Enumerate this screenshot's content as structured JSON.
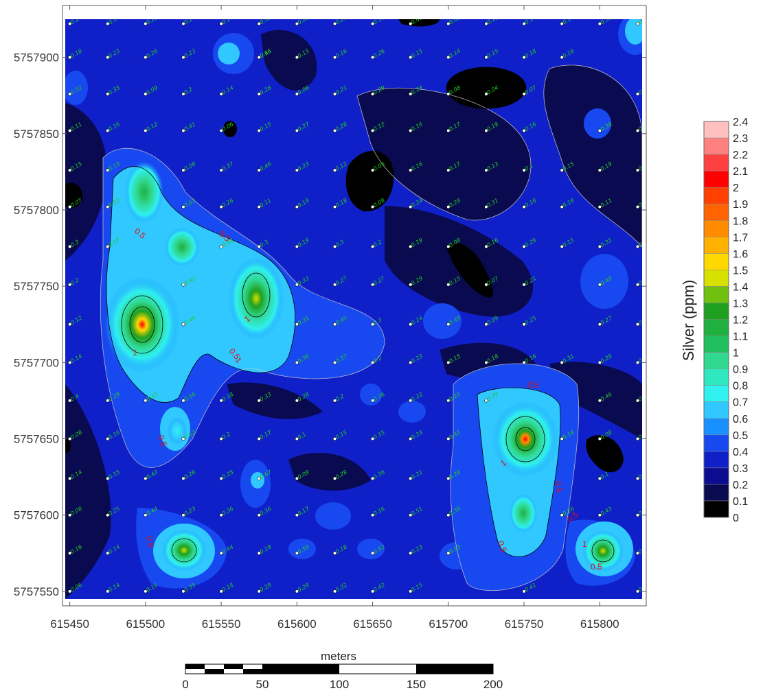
{
  "map": {
    "x_ticks": [
      "615450",
      "615500",
      "615550",
      "615600",
      "615650",
      "615700",
      "615750",
      "615800"
    ],
    "y_ticks": [
      "5757900",
      "5757850",
      "5757800",
      "5757750",
      "5757700",
      "5757650",
      "5757600",
      "5757550"
    ],
    "x_range": [
      615447,
      615828
    ],
    "y_range": [
      5757545,
      5757925
    ],
    "contour_labels": [
      "0.5",
      "1",
      "0.5",
      "1",
      "0.5",
      "1",
      "0.5",
      "0.5",
      "0.5",
      "1",
      "0.5",
      "0.5",
      "0.5",
      "0.5",
      "1"
    ]
  },
  "legend": {
    "title": "Silver (ppm)",
    "levels": [
      "0",
      "0.1",
      "0.2",
      "0.3",
      "0.4",
      "0.5",
      "0.6",
      "0.7",
      "0.8",
      "0.9",
      "1",
      "1.1",
      "1.2",
      "1.3",
      "1.4",
      "1.5",
      "1.6",
      "1.7",
      "1.8",
      "1.9",
      "2",
      "2.1",
      "2.2",
      "2.3",
      "2.4"
    ],
    "colors": [
      "#000000",
      "#0a0a50",
      "#0c0c90",
      "#1020c8",
      "#1848f0",
      "#1890ff",
      "#30c8ff",
      "#30f0f0",
      "#30e8c0",
      "#30d890",
      "#20c060",
      "#20b040",
      "#20a020",
      "#70c010",
      "#d8e000",
      "#ffd800",
      "#ffb000",
      "#ff8c00",
      "#ff6400",
      "#ff4000",
      "#ff0000",
      "#ff4040",
      "#ff8080",
      "#ffc0c0",
      "#ffffff"
    ]
  },
  "scale_bar": {
    "title": "meters",
    "labels": [
      "0",
      "50",
      "100",
      "150",
      "200"
    ]
  },
  "samples": [
    [
      "0.2",
      615450,
      5757922
    ],
    [
      "0.1",
      615475,
      5757922
    ],
    [
      "0.23",
      615500,
      5757922
    ],
    [
      "0.2",
      615525,
      5757922
    ],
    [
      "0.17",
      615550,
      5757922
    ],
    [
      "0.52",
      615575,
      5757922
    ],
    [
      "0.25",
      615600,
      5757922
    ],
    [
      "0.21",
      615625,
      5757922
    ],
    [
      "0.11",
      615650,
      5757922
    ],
    [
      "0.09",
      615675,
      5757922
    ],
    [
      "0.09",
      615700,
      5757922
    ],
    [
      "0.15",
      615725,
      5757922
    ],
    [
      "0.14",
      615750,
      5757922
    ],
    [
      "0.14",
      615775,
      5757922
    ],
    [
      "0.39",
      615800,
      5757922
    ],
    [
      "0.84",
      615825,
      5757922
    ],
    [
      "0.18",
      615450,
      5757900
    ],
    [
      "0.23",
      615475,
      5757900
    ],
    [
      "0.26",
      615500,
      5757900
    ],
    [
      "0.23",
      615525,
      5757900
    ],
    [
      "0.66",
      615575,
      5757900
    ],
    [
      "0.15",
      615575,
      5757900
    ],
    [
      "0.15",
      615600,
      5757900
    ],
    [
      "0.16",
      615625,
      5757900
    ],
    [
      "0.26",
      615650,
      5757900
    ],
    [
      "0.15",
      615675,
      5757900
    ],
    [
      "0.14",
      615700,
      5757900
    ],
    [
      "0.15",
      615725,
      5757900
    ],
    [
      "0.18",
      615750,
      5757900
    ],
    [
      "0.16",
      615775,
      5757900
    ],
    [
      "0.52",
      615450,
      5757876
    ],
    [
      "0.33",
      615475,
      5757876
    ],
    [
      "0.09",
      615500,
      5757876
    ],
    [
      "0.2",
      615525,
      5757876
    ],
    [
      "0.14",
      615550,
      5757876
    ],
    [
      "0.26",
      615575,
      5757876
    ],
    [
      "0.06",
      615600,
      5757876
    ],
    [
      "0.21",
      615625,
      5757876
    ],
    [
      "0.29",
      615650,
      5757876
    ],
    [
      "0.23",
      615675,
      5757876
    ],
    [
      "0.08",
      615700,
      5757876
    ],
    [
      "0.04",
      615725,
      5757876
    ],
    [
      "0.07",
      615750,
      5757876
    ],
    [
      "0.18",
      615825,
      5757876
    ],
    [
      "0.11",
      615450,
      5757852
    ],
    [
      "0.16",
      615475,
      5757852
    ],
    [
      "0.12",
      615500,
      5757852
    ],
    [
      "0.41",
      615525,
      5757852
    ],
    [
      "0.06",
      615550,
      5757852
    ],
    [
      "0.15",
      615575,
      5757852
    ],
    [
      "0.27",
      615600,
      5757852
    ],
    [
      "0.28",
      615625,
      5757852
    ],
    [
      "0.12",
      615650,
      5757852
    ],
    [
      "0.16",
      615675,
      5757852
    ],
    [
      "0.17",
      615700,
      5757852
    ],
    [
      "0.19",
      615725,
      5757852
    ],
    [
      "0.16",
      615750,
      5757852
    ],
    [
      "0.38",
      615800,
      5757852
    ],
    [
      "0.14",
      615825,
      5757852
    ],
    [
      "0.15",
      615450,
      5757826
    ],
    [
      "0.13",
      615475,
      5757826
    ],
    [
      "0.08",
      615525,
      5757826
    ],
    [
      "0.37",
      615550,
      5757826
    ],
    [
      "0.46",
      615575,
      5757826
    ],
    [
      "0.23",
      615600,
      5757826
    ],
    [
      "0.12",
      615625,
      5757826
    ],
    [
      "0.05",
      615650,
      5757826
    ],
    [
      "0.16",
      615675,
      5757826
    ],
    [
      "0.17",
      615700,
      5757826
    ],
    [
      "0.13",
      615725,
      5757826
    ],
    [
      "0.1",
      615750,
      5757826
    ],
    [
      "0.15",
      615775,
      5757826
    ],
    [
      "0.19",
      615800,
      5757826
    ],
    [
      "0.22",
      615825,
      5757826
    ],
    [
      "0.07",
      615450,
      5757802
    ],
    [
      "0.12",
      615475,
      5757802
    ],
    [
      "0.63",
      615525,
      5757802
    ],
    [
      "0.26",
      615550,
      5757802
    ],
    [
      "0.11",
      615575,
      5757802
    ],
    [
      "0.19",
      615600,
      5757802
    ],
    [
      "0.18",
      615625,
      5757802
    ],
    [
      "0.08",
      615650,
      5757802
    ],
    [
      "0.24",
      615675,
      5757802
    ],
    [
      "0.29",
      615700,
      5757802
    ],
    [
      "0.31",
      615725,
      5757802
    ],
    [
      "0.18",
      615750,
      5757802
    ],
    [
      "0.18",
      615775,
      5757802
    ],
    [
      "0.11",
      615800,
      5757802
    ],
    [
      "0.24",
      615825,
      5757802
    ],
    [
      "0.3",
      615450,
      5757776
    ],
    [
      "0.17",
      615475,
      5757776
    ],
    [
      "0.64",
      615550,
      5757776
    ],
    [
      "0.3",
      615575,
      5757776
    ],
    [
      "0.19",
      615600,
      5757776
    ],
    [
      "0.3",
      615625,
      5757776
    ],
    [
      "0.2",
      615650,
      5757776
    ],
    [
      "0.19",
      615675,
      5757776
    ],
    [
      "0.08",
      615700,
      5757776
    ],
    [
      "0.16",
      615725,
      5757776
    ],
    [
      "0.29",
      615750,
      5757776
    ],
    [
      "0.15",
      615775,
      5757776
    ],
    [
      "0.31",
      615800,
      5757776
    ],
    [
      "0.18",
      615825,
      5757776
    ],
    [
      "0.2",
      615450,
      5757751
    ],
    [
      "0.42",
      615525,
      5757751
    ],
    [
      "0.33",
      615600,
      5757751
    ],
    [
      "0.27",
      615625,
      5757751
    ],
    [
      "0.27",
      615650,
      5757751
    ],
    [
      "0.29",
      615675,
      5757751
    ],
    [
      "0.15",
      615700,
      5757751
    ],
    [
      "0.07",
      615725,
      5757751
    ],
    [
      "0.21",
      615750,
      5757751
    ],
    [
      "0.48",
      615800,
      5757751
    ],
    [
      "0.16",
      615825,
      5757751
    ],
    [
      "0.12",
      615450,
      5757725
    ],
    [
      "0.49",
      615525,
      5757725
    ],
    [
      "0.31",
      615600,
      5757725
    ],
    [
      "0.45",
      615625,
      5757725
    ],
    [
      "0.3",
      615650,
      5757725
    ],
    [
      "0.24",
      615675,
      5757725
    ],
    [
      "0.49",
      615700,
      5757725
    ],
    [
      "0.09",
      615725,
      5757725
    ],
    [
      "0.25",
      615750,
      5757725
    ],
    [
      "0.27",
      615800,
      5757725
    ],
    [
      "0.29",
      615825,
      5757725
    ],
    [
      "0.14",
      615450,
      5757700
    ],
    [
      "0.36",
      615600,
      5757700
    ],
    [
      "0.37",
      615625,
      5757700
    ],
    [
      "0.2",
      615650,
      5757700
    ],
    [
      "0.23",
      615675,
      5757700
    ],
    [
      "0.15",
      615700,
      5757700
    ],
    [
      "0.18",
      615725,
      5757700
    ],
    [
      "0.16",
      615750,
      5757700
    ],
    [
      "0.31",
      615775,
      5757700
    ],
    [
      "0.29",
      615800,
      5757700
    ],
    [
      "0.17",
      615825,
      5757700
    ],
    [
      "0.4",
      615450,
      5757675
    ],
    [
      "0.29",
      615475,
      5757675
    ],
    [
      "0.33",
      615500,
      5757675
    ],
    [
      "0.56",
      615525,
      5757675
    ],
    [
      "0.18",
      615550,
      5757675
    ],
    [
      "0.33",
      615575,
      5757675
    ],
    [
      "0.28",
      615600,
      5757675
    ],
    [
      "0.2",
      615625,
      5757675
    ],
    [
      "0.36",
      615650,
      5757675
    ],
    [
      "0.22",
      615675,
      5757675
    ],
    [
      "0.25",
      615700,
      5757675
    ],
    [
      "0.79",
      615725,
      5757675
    ],
    [
      "0.46",
      615800,
      5757675
    ],
    [
      "0.37",
      615825,
      5757675
    ],
    [
      "0.08",
      615450,
      5757650
    ],
    [
      "0.16",
      615475,
      5757650
    ],
    [
      "0.62",
      615525,
      5757650
    ],
    [
      "0.2",
      615550,
      5757650
    ],
    [
      "0.17",
      615575,
      5757650
    ],
    [
      "0.1",
      615600,
      5757650
    ],
    [
      "0.15",
      615625,
      5757650
    ],
    [
      "0.15",
      615650,
      5757650
    ],
    [
      "0.24",
      615675,
      5757650
    ],
    [
      "0.45",
      615700,
      5757650
    ],
    [
      "0.18",
      615775,
      5757650
    ],
    [
      "0.09",
      615800,
      5757650
    ],
    [
      "0.31",
      615825,
      5757650
    ],
    [
      "0.14",
      615450,
      5757624
    ],
    [
      "0.15",
      615475,
      5757624
    ],
    [
      "0.43",
      615500,
      5757624
    ],
    [
      "0.26",
      615525,
      5757624
    ],
    [
      "0.25",
      615550,
      5757624
    ],
    [
      "0.67",
      615575,
      5757624
    ],
    [
      "0.09",
      615600,
      5757624
    ],
    [
      "0.28",
      615625,
      5757624
    ],
    [
      "0.36",
      615650,
      5757624
    ],
    [
      "0.21",
      615675,
      5757624
    ],
    [
      "0.28",
      615700,
      5757624
    ],
    [
      "0.1",
      615800,
      5757624
    ],
    [
      "0.1",
      615825,
      5757624
    ],
    [
      "0.08",
      615450,
      5757600
    ],
    [
      "0.25",
      615475,
      5757600
    ],
    [
      "0.44",
      615500,
      5757600
    ],
    [
      "0.23",
      615525,
      5757600
    ],
    [
      "0.36",
      615550,
      5757600
    ],
    [
      "0.36",
      615575,
      5757600
    ],
    [
      "0.17",
      615600,
      5757600
    ],
    [
      "0.16",
      615650,
      5757600
    ],
    [
      "0.51",
      615675,
      5757600
    ],
    [
      "0.39",
      615700,
      5757600
    ],
    [
      "0.26",
      615775,
      5757600
    ],
    [
      "0.43",
      615800,
      5757600
    ],
    [
      "0.18",
      615825,
      5757600
    ],
    [
      "0.16",
      615450,
      5757575
    ],
    [
      "0.14",
      615475,
      5757575
    ],
    [
      "0.44",
      615550,
      5757575
    ],
    [
      "0.18",
      615575,
      5757575
    ],
    [
      "0.59",
      615600,
      5757575
    ],
    [
      "0.18",
      615625,
      5757575
    ],
    [
      "0.52",
      615650,
      5757575
    ],
    [
      "0.23",
      615675,
      5757575
    ],
    [
      "0.53",
      615700,
      5757575
    ],
    [
      "0.29",
      615825,
      5757575
    ],
    [
      "0.06",
      615450,
      5757550
    ],
    [
      "0.14",
      615475,
      5757550
    ],
    [
      "0.16",
      615500,
      5757550
    ],
    [
      "0.35",
      615525,
      5757550
    ],
    [
      "0.18",
      615550,
      5757550
    ],
    [
      "0.28",
      615575,
      5757550
    ],
    [
      "0.28",
      615600,
      5757550
    ],
    [
      "0.32",
      615625,
      5757550
    ],
    [
      "0.42",
      615650,
      5757550
    ],
    [
      "0.15",
      615675,
      5757550
    ],
    [
      "0.41",
      615750,
      5757550
    ],
    [
      "0.49",
      615825,
      5757550
    ]
  ]
}
